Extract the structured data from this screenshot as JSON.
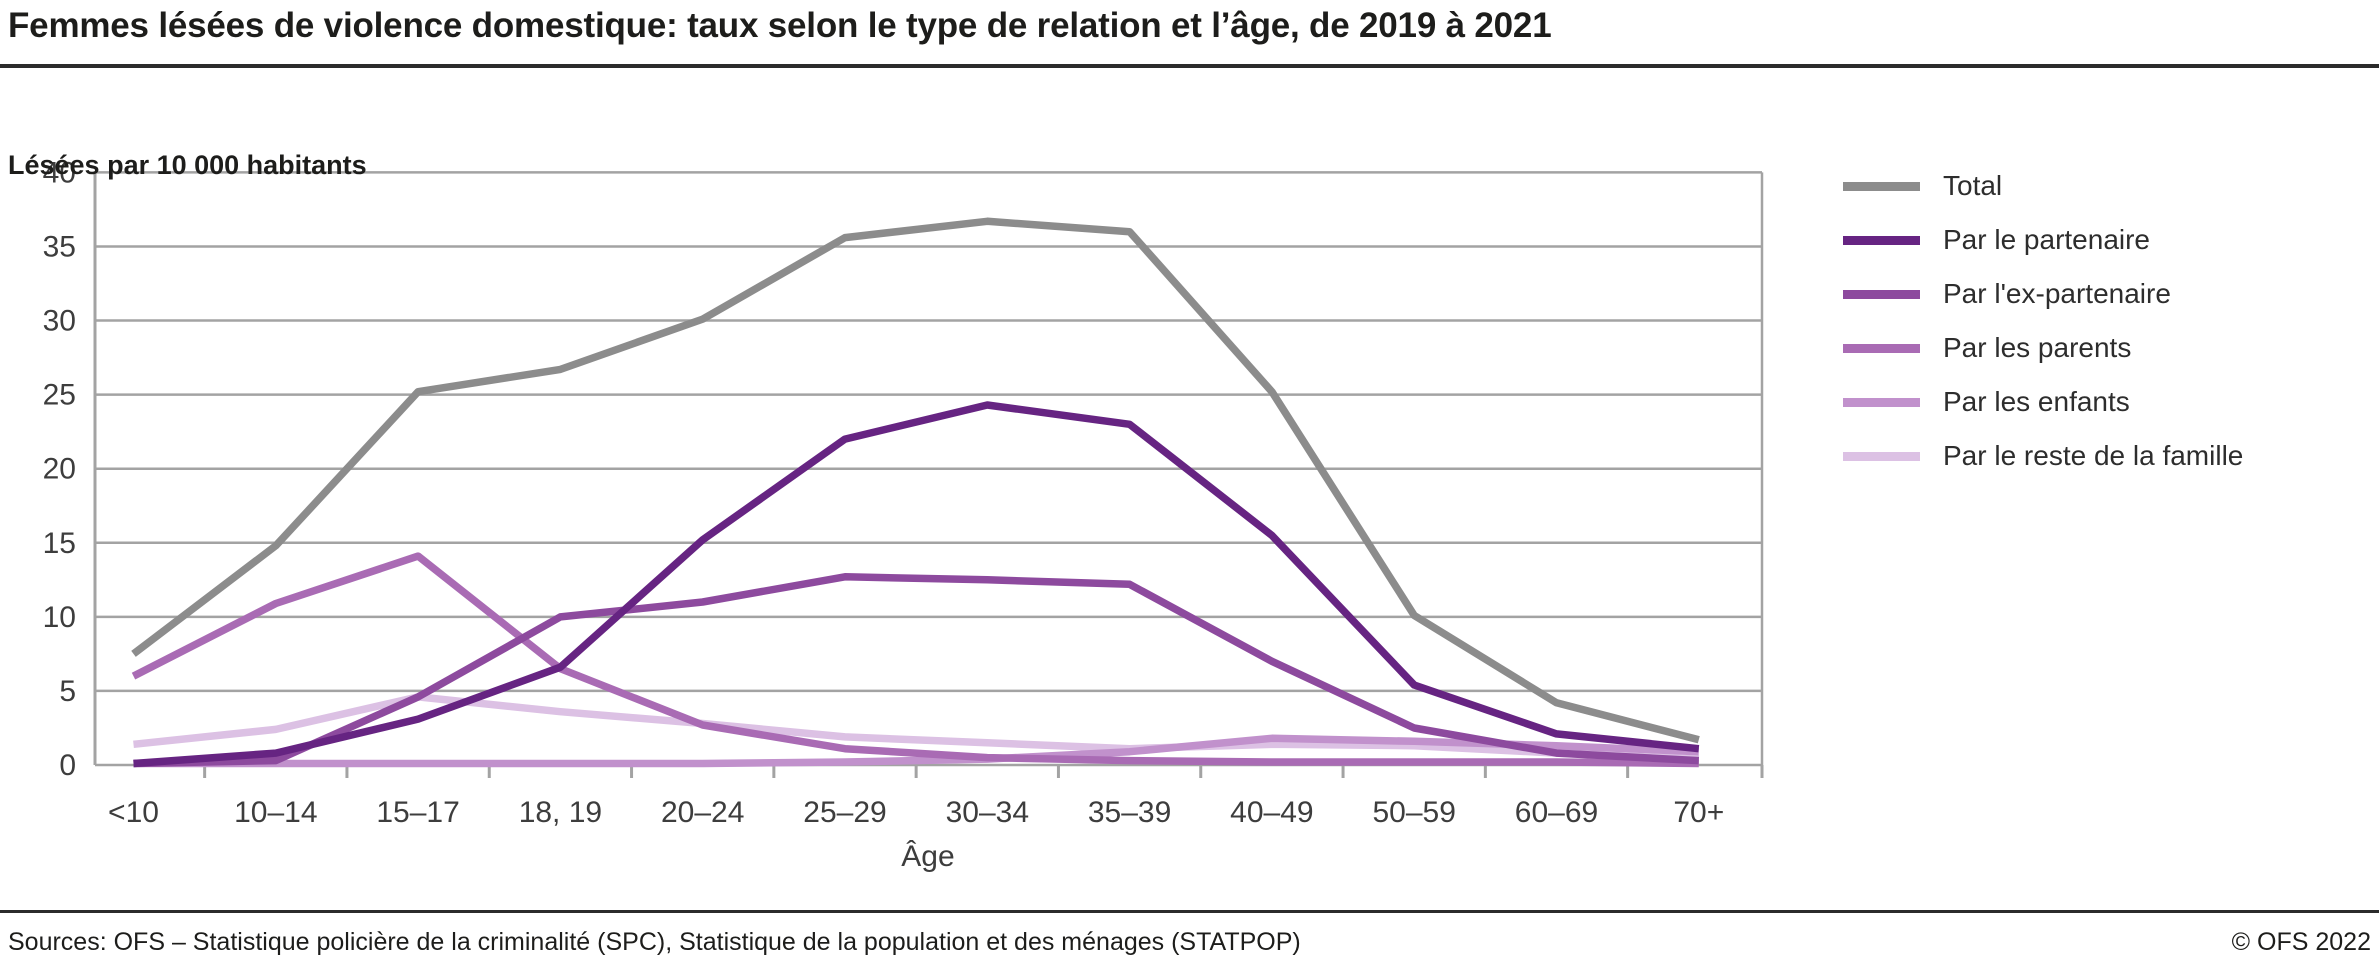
{
  "page": {
    "title": "Femmes lésées de violence domestique: taux selon le type de relation et l’âge, de 2019 à 2021",
    "footer_sources": "Sources: OFS – Statistique policière de la criminalité (SPC), Statistique de la population et des ménages (STATPOP)",
    "footer_copyright": "© OFS 2022"
  },
  "chart_data": {
    "type": "line",
    "title": "Femmes lésées de violence domestique: taux selon le type de relation et l’âge, de 2019 à 2021",
    "subtitle_unit": "Lésées par 10 000 habitants",
    "xlabel": "Âge",
    "ylabel": "Lésées par 10 000 habitants",
    "ylim": [
      0,
      40
    ],
    "ytick_step": 5,
    "grid": true,
    "legend_position": "right",
    "axis_color": "#a3a3a3",
    "tick_label_color": "#3d3d3d",
    "categories": [
      "<10",
      "10–14",
      "15–17",
      "18, 19",
      "20–24",
      "25–29",
      "30–34",
      "35–39",
      "40–49",
      "50–59",
      "60–69",
      "70+"
    ],
    "series": [
      {
        "name": "Total",
        "color": "#8c8c8c",
        "values": [
          7.5,
          14.8,
          25.2,
          26.7,
          30.1,
          35.6,
          36.7,
          36.0,
          25.2,
          10.1,
          4.2,
          1.7
        ]
      },
      {
        "name": "Par le partenaire",
        "color": "#662482",
        "values": [
          0.1,
          0.8,
          3.1,
          6.6,
          15.2,
          22.0,
          24.3,
          23.0,
          15.5,
          5.4,
          2.1,
          1.1
        ]
      },
      {
        "name": "Par l'ex-partenaire",
        "color": "#8d4a9e",
        "values": [
          0.1,
          0.3,
          4.6,
          10.0,
          11.0,
          12.7,
          12.5,
          12.2,
          7.0,
          2.5,
          0.8,
          0.3
        ]
      },
      {
        "name": "Par les parents",
        "color": "#a96bb4",
        "values": [
          6.0,
          10.9,
          14.1,
          6.5,
          2.7,
          1.1,
          0.5,
          0.3,
          0.2,
          0.2,
          0.2,
          0.1
        ]
      },
      {
        "name": "Par les enfants",
        "color": "#c191cc",
        "values": [
          0.1,
          0.1,
          0.1,
          0.1,
          0.1,
          0.2,
          0.4,
          0.9,
          1.8,
          1.6,
          1.3,
          0.9
        ]
      },
      {
        "name": "Par le reste de la famille",
        "color": "#dcc1e4",
        "values": [
          1.4,
          2.4,
          4.6,
          3.6,
          2.8,
          1.9,
          1.5,
          1.1,
          1.4,
          1.3,
          0.8,
          0.4
        ]
      }
    ]
  }
}
